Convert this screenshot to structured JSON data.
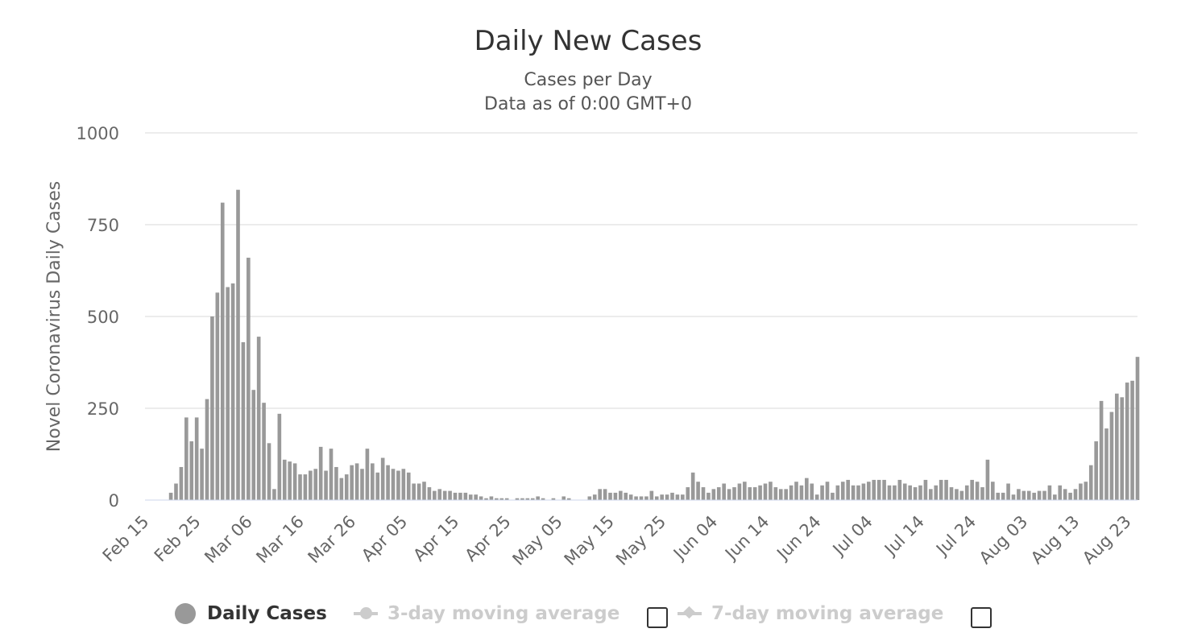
{
  "chart_data": {
    "type": "bar",
    "title": "Daily New Cases",
    "subtitle_lines": [
      "Cases per Day",
      "Data as of 0:00 GMT+0"
    ],
    "ylabel": "Novel Coronavirus Daily Cases",
    "xlabel": "",
    "ylim": [
      0,
      1000
    ],
    "yticks": [
      0,
      250,
      500,
      750,
      1000
    ],
    "xticks": [
      "Feb 15",
      "Feb 25",
      "Mar 06",
      "Mar 16",
      "Mar 26",
      "Apr 05",
      "Apr 15",
      "Apr 25",
      "May 05",
      "May 15",
      "May 25",
      "Jun 04",
      "Jun 14",
      "Jun 24",
      "Jul 04",
      "Jul 14",
      "Jul 24",
      "Aug 03",
      "Aug 13",
      "Aug 23"
    ],
    "first_date": "Feb 15",
    "grid": true,
    "bar_color": "#999999",
    "series": [
      {
        "name": "Daily Cases",
        "values": [
          0,
          0,
          0,
          0,
          0,
          20,
          45,
          90,
          225,
          160,
          225,
          140,
          275,
          500,
          565,
          810,
          580,
          590,
          845,
          430,
          660,
          300,
          445,
          265,
          155,
          30,
          235,
          110,
          105,
          100,
          70,
          70,
          80,
          85,
          145,
          80,
          140,
          90,
          60,
          70,
          95,
          100,
          85,
          140,
          100,
          75,
          115,
          95,
          85,
          80,
          85,
          75,
          45,
          45,
          50,
          35,
          25,
          30,
          25,
          25,
          20,
          20,
          20,
          15,
          15,
          10,
          5,
          10,
          5,
          5,
          5,
          0,
          5,
          5,
          5,
          5,
          10,
          5,
          0,
          5,
          0,
          10,
          5,
          0,
          0,
          0,
          10,
          15,
          30,
          30,
          20,
          20,
          25,
          20,
          15,
          10,
          10,
          10,
          25,
          10,
          15,
          15,
          20,
          15,
          15,
          35,
          75,
          50,
          35,
          20,
          30,
          35,
          45,
          30,
          35,
          45,
          50,
          35,
          35,
          40,
          45,
          50,
          35,
          30,
          30,
          40,
          50,
          40,
          60,
          45,
          15,
          40,
          50,
          20,
          40,
          50,
          55,
          40,
          40,
          45,
          50,
          55,
          55,
          55,
          40,
          40,
          55,
          45,
          40,
          35,
          40,
          55,
          30,
          40,
          55,
          55,
          35,
          30,
          25,
          40,
          55,
          50,
          35,
          110,
          50,
          20,
          20,
          45,
          15,
          30,
          25,
          25,
          20,
          25,
          25,
          40,
          15,
          40,
          30,
          20,
          30,
          45,
          50,
          95,
          160,
          270,
          195,
          240,
          290,
          280,
          320,
          325,
          390
        ]
      }
    ]
  },
  "legend": {
    "daily_label": "Daily Cases",
    "ma3_label": "3-day moving average",
    "ma7_label": "7-day moving average"
  },
  "colors": {
    "bar": "#999999",
    "grid": "#e6e6e6",
    "axis": "#ccd6eb",
    "inactive": "#cccccc"
  }
}
